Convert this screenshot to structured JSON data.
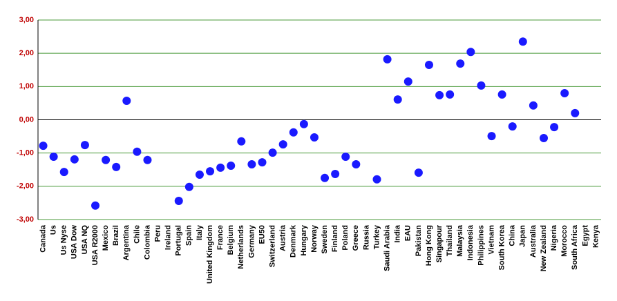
{
  "chart_data": {
    "type": "scatter",
    "categories": [
      "Canada",
      "Us",
      "Us Nyse",
      "USA Dow",
      "USA NQ",
      "USA R2000",
      "Mexico",
      "Brazil",
      "Argentina",
      "Chile",
      "Colombia",
      "Peru",
      "Ireland",
      "Portugal",
      "Spain",
      "Italy",
      "United Kingdom",
      "France",
      "Belgium",
      "Netherlands",
      "Germany",
      "EU50",
      "Switzerland",
      "Austria",
      "Denmark",
      "Hungary",
      "Norway",
      "Sweden",
      "Finland",
      "Poland",
      "Greece",
      "Russia",
      "Turkey",
      "Saudi Arabia",
      "India",
      "EAU",
      "Pakistan",
      "Hong Kong",
      "Singapour",
      "Thailand",
      "Malaysia",
      "Indonesia",
      "Philippines",
      "Vietnam",
      "South Korea",
      "China",
      "Japan",
      "Australia",
      "New Zealand",
      "Nigeria",
      "Morocco",
      "South Africa",
      "Egypt",
      "Kenya"
    ],
    "values": [
      -0.78,
      -1.11,
      -1.57,
      -1.19,
      -0.76,
      -2.58,
      -1.21,
      -1.42,
      0.57,
      -0.96,
      -1.21,
      null,
      null,
      -2.44,
      -2.02,
      -1.65,
      -1.55,
      -1.44,
      -1.38,
      -0.65,
      -1.34,
      -1.28,
      -0.99,
      -0.74,
      -0.38,
      -0.13,
      -0.53,
      -1.75,
      -1.63,
      -1.11,
      -1.34,
      null,
      -1.79,
      1.82,
      0.61,
      1.15,
      -1.59,
      1.65,
      0.74,
      0.76,
      1.69,
      2.04,
      1.03,
      -0.49,
      0.76,
      -0.2,
      2.35,
      0.43,
      -0.55,
      -0.22,
      0.8,
      0.2,
      null,
      null
    ],
    "color": "#1a1aff",
    "ylim": [
      -3,
      3
    ],
    "yticks": [
      {
        "value": -3,
        "label": "-3,00"
      },
      {
        "value": -2,
        "label": "-2,00"
      },
      {
        "value": -1,
        "label": "-1,00"
      },
      {
        "value": 0,
        "label": "0,00"
      },
      {
        "value": 1,
        "label": "1,00"
      },
      {
        "value": 2,
        "label": "2,00"
      },
      {
        "value": 3,
        "label": "3,00"
      }
    ],
    "grid": true
  }
}
